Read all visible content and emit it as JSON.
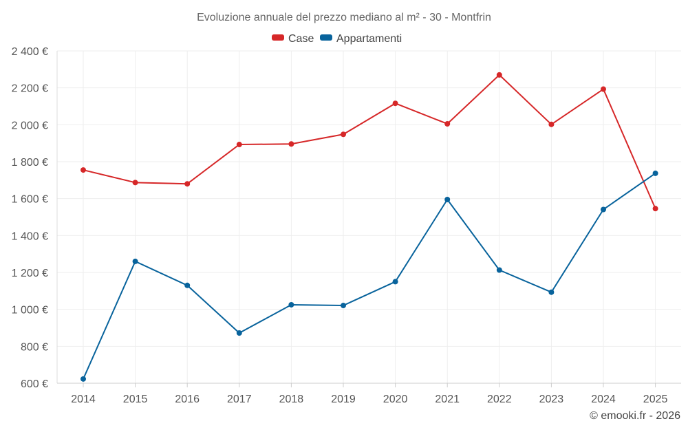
{
  "chart_data": {
    "type": "line",
    "title": "Evoluzione annuale del prezzo mediano al m² - 30 - Montfrin",
    "categories": [
      "2014",
      "2015",
      "2016",
      "2017",
      "2018",
      "2019",
      "2020",
      "2021",
      "2022",
      "2023",
      "2024",
      "2025"
    ],
    "series": [
      {
        "name": "Case",
        "color": "#d62728",
        "values": [
          1755,
          1687,
          1680,
          1893,
          1896,
          1948,
          2116,
          2005,
          2270,
          2002,
          2193,
          1546
        ]
      },
      {
        "name": "Appartamenti",
        "color": "#08639c",
        "values": [
          623,
          1260,
          1130,
          872,
          1025,
          1021,
          1150,
          1595,
          1213,
          1093,
          1541,
          1737
        ]
      }
    ],
    "ylim": [
      600,
      2400
    ],
    "yticks": [
      600,
      800,
      1000,
      1200,
      1400,
      1600,
      1800,
      2000,
      2200,
      2400
    ],
    "ytick_labels": [
      "600 €",
      "800 €",
      "1 000 €",
      "1 200 €",
      "1 400 €",
      "1 600 €",
      "1 800 €",
      "2 000 €",
      "2 200 €",
      "2 400 €"
    ],
    "xlabel": "",
    "ylabel": "",
    "grid": true,
    "legend_position": "top-center",
    "credit": "© emooki.fr - 2026"
  }
}
